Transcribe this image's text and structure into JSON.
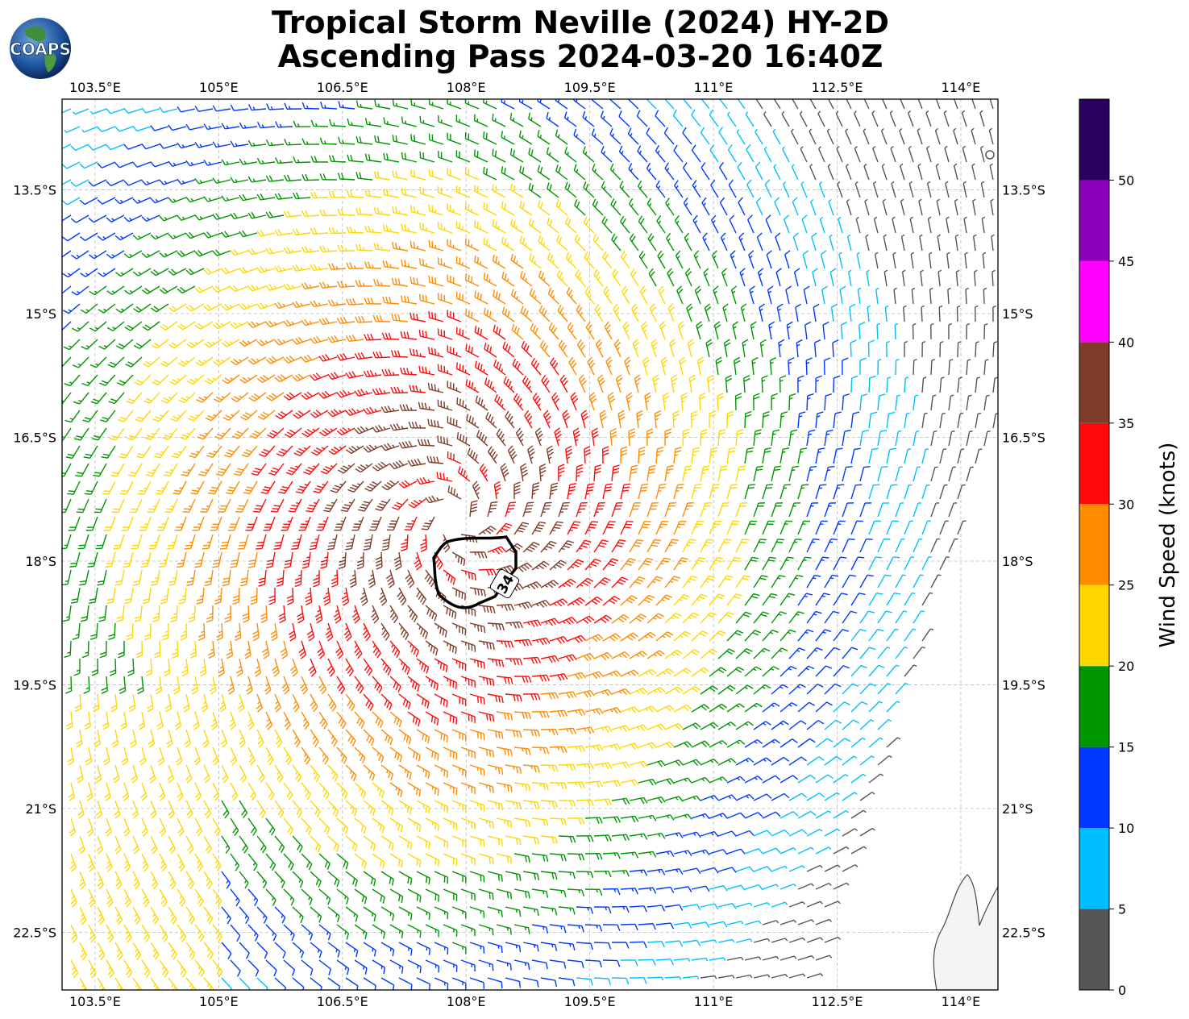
{
  "header": {
    "title_line1": "Tropical Storm Neville (2024) HY-2D",
    "title_line2": "Ascending Pass 2024-03-20 16:40Z",
    "logo_text": "COAPS"
  },
  "map": {
    "lon_ticks": [
      103.5,
      105,
      106.5,
      108,
      109.5,
      111,
      112.5,
      114
    ],
    "lon_labels": [
      "103.5°E",
      "105°E",
      "106.5°E",
      "108°E",
      "109.5°E",
      "111°E",
      "112.5°E",
      "114°E"
    ],
    "lat_ticks": [
      -13.5,
      -15,
      -16.5,
      -18,
      -19.5,
      -21,
      -22.5
    ],
    "lat_labels": [
      "13.5°S",
      "15°S",
      "16.5°S",
      "18°S",
      "19.5°S",
      "21°S",
      "22.5°S"
    ],
    "lon_range": [
      103.1,
      114.45
    ],
    "lat_range": [
      -12.4,
      -23.2
    ],
    "storm_center": {
      "lon": 107.9,
      "lat": -17.5
    },
    "contour_label": "34",
    "gridlines": true
  },
  "colorbar": {
    "label": "Wind Speed (knots)",
    "tick_labels": [
      "0",
      "5",
      "10",
      "15",
      "20",
      "25",
      "30",
      "35",
      "40",
      "45",
      "50"
    ],
    "bins": [
      {
        "min": 0,
        "max": 5,
        "color": "#555555"
      },
      {
        "min": 5,
        "max": 10,
        "color": "#00bfff"
      },
      {
        "min": 10,
        "max": 15,
        "color": "#0038ff"
      },
      {
        "min": 15,
        "max": 20,
        "color": "#009600"
      },
      {
        "min": 20,
        "max": 25,
        "color": "#ffd700"
      },
      {
        "min": 25,
        "max": 30,
        "color": "#ff8c00"
      },
      {
        "min": 30,
        "max": 35,
        "color": "#ff0a0a"
      },
      {
        "min": 35,
        "max": 40,
        "color": "#7f3c28"
      },
      {
        "min": 40,
        "max": 45,
        "color": "#ff00ff"
      },
      {
        "min": 45,
        "max": 50,
        "color": "#8a00b8"
      },
      {
        "min": 50,
        "max": 55,
        "color": "#2a0060"
      }
    ]
  }
}
